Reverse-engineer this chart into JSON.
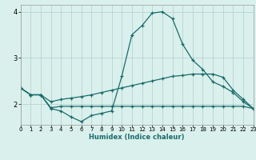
{
  "xlabel": "Humidex (Indice chaleur)",
  "xlim": [
    0,
    23
  ],
  "ylim": [
    1.55,
    4.15
  ],
  "yticks": [
    2,
    3,
    4
  ],
  "xticks": [
    0,
    1,
    2,
    3,
    4,
    5,
    6,
    7,
    8,
    9,
    10,
    11,
    12,
    13,
    14,
    15,
    16,
    17,
    18,
    19,
    20,
    21,
    22,
    23
  ],
  "bg_color": "#daf0ec",
  "line_color": "#1a6b6b",
  "grid_color": "#b0cece",
  "line1_y": [
    2.35,
    2.2,
    2.2,
    1.9,
    1.85,
    1.72,
    1.62,
    1.75,
    1.8,
    1.85,
    2.6,
    3.5,
    3.7,
    3.97,
    4.0,
    3.85,
    3.3,
    2.95,
    2.75,
    2.48,
    2.38,
    2.25,
    2.05,
    1.9
  ],
  "line2_y": [
    2.35,
    2.2,
    2.2,
    1.92,
    1.95,
    1.95,
    1.95,
    1.95,
    1.95,
    1.95,
    1.95,
    1.95,
    1.95,
    1.95,
    1.95,
    1.95,
    1.95,
    1.95,
    1.95,
    1.95,
    1.95,
    1.95,
    1.95,
    1.9
  ],
  "line3_y": [
    2.35,
    2.2,
    2.2,
    2.05,
    2.1,
    2.13,
    2.16,
    2.2,
    2.25,
    2.3,
    2.35,
    2.4,
    2.45,
    2.5,
    2.55,
    2.6,
    2.62,
    2.65,
    2.65,
    2.65,
    2.58,
    2.3,
    2.1,
    1.9
  ]
}
